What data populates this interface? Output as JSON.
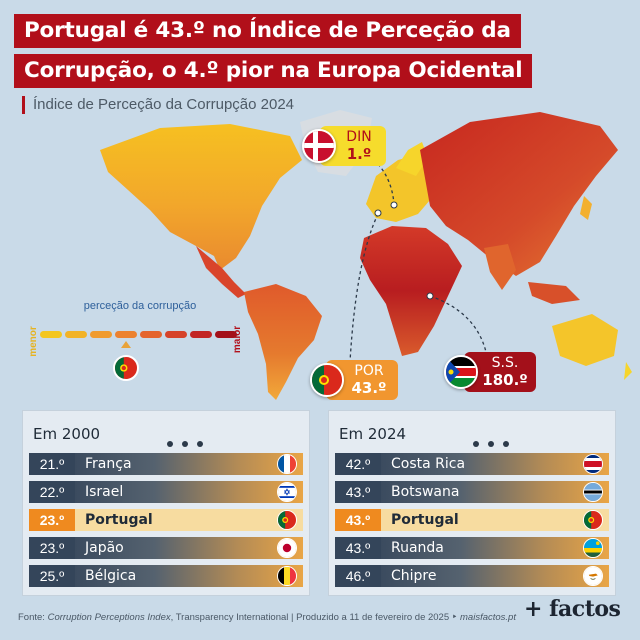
{
  "title": {
    "line1": "Portugal é 43.º no Índice de Perceção da",
    "line2": "Corrupção, o 4.º pior na Europa Ocidental"
  },
  "subtitle": "Índice de Perceção da Corrupção 2024",
  "legend": {
    "caption": "perceção da corrupção",
    "low": "menor",
    "high": "maior",
    "scale_colors": [
      "#f3c61f",
      "#f2b327",
      "#f09b2e",
      "#ec8230",
      "#e4642d",
      "#d6432a",
      "#c22524",
      "#a3101a"
    ],
    "portugal_position_step": 3
  },
  "callouts": {
    "denmark": {
      "code": "DIN",
      "rank": "1.º",
      "flag_icon": "denmark-flag-icon"
    },
    "portugal": {
      "code": "POR",
      "rank": "43.º",
      "flag_icon": "portugal-flag-icon"
    },
    "south_sudan": {
      "code": "S.S.",
      "rank": "180.º",
      "flag_icon": "south-sudan-flag-icon"
    }
  },
  "panels": {
    "y2000": {
      "title": "Em 2000",
      "rows": [
        {
          "rank": "21.º",
          "country": "França",
          "flag_icon": "france-flag-icon",
          "highlight": false
        },
        {
          "rank": "22.º",
          "country": "Israel",
          "flag_icon": "israel-flag-icon",
          "highlight": false
        },
        {
          "rank": "23.º",
          "country": "Portugal",
          "flag_icon": "portugal-flag-icon",
          "highlight": true
        },
        {
          "rank": "23.º",
          "country": "Japão",
          "flag_icon": "japan-flag-icon",
          "highlight": false
        },
        {
          "rank": "25.º",
          "country": "Bélgica",
          "flag_icon": "belgium-flag-icon",
          "highlight": false
        }
      ]
    },
    "y2024": {
      "title": "Em 2024",
      "rows": [
        {
          "rank": "42.º",
          "country": "Costa Rica",
          "flag_icon": "costa-rica-flag-icon",
          "highlight": false
        },
        {
          "rank": "43.º",
          "country": "Botswana",
          "flag_icon": "botswana-flag-icon",
          "highlight": false
        },
        {
          "rank": "43.º",
          "country": "Portugal",
          "flag_icon": "portugal-flag-icon",
          "highlight": true
        },
        {
          "rank": "43.º",
          "country": "Ruanda",
          "flag_icon": "rwanda-flag-icon",
          "highlight": false
        },
        {
          "rank": "46.º",
          "country": "Chipre",
          "flag_icon": "cyprus-flag-icon",
          "highlight": false
        }
      ]
    }
  },
  "footer": {
    "prefix": "Fonte: ",
    "source_title": "Corruption Perceptions Index",
    "source_org": ", Transparency International  |  Produzido a 11 de fevereiro de 2025 ‣ ",
    "site": "maisfactos.pt"
  },
  "logo": "+ factos",
  "colors": {
    "brand_red": "#b10f1a",
    "highlight_orange": "#ef8a1f",
    "row_dark": "#34455a",
    "ocean": "#c9dae8"
  }
}
